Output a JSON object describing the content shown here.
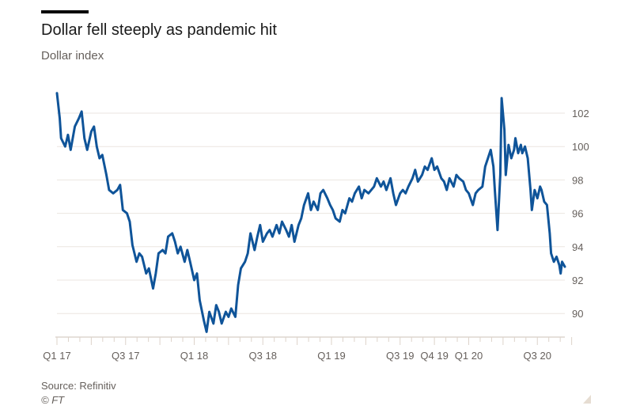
{
  "header": {
    "title": "Dollar fell steeply as pandemic hit",
    "subtitle": "Dollar index"
  },
  "footer": {
    "source": "Source: Refinitiv",
    "copyright": "© FT"
  },
  "chart_data": {
    "type": "line",
    "title": "Dollar fell steeply as pandemic hit",
    "subtitle": "Dollar index",
    "xlabel": "",
    "ylabel": "Dollar index",
    "ylim": [
      88.6,
      103.5
    ],
    "xlim": [
      2017.0,
      2020.75
    ],
    "grid": true,
    "y_axis_side": "right",
    "line_color": "#0f5499",
    "y_ticks": [
      90,
      92,
      94,
      96,
      98,
      100,
      102
    ],
    "x_ticks": [
      {
        "label": "Q1 17",
        "x": 2017.0
      },
      {
        "label": "Q3 17",
        "x": 2017.5
      },
      {
        "label": "Q1 18",
        "x": 2018.0
      },
      {
        "label": "Q3 18",
        "x": 2018.5
      },
      {
        "label": "Q1 19",
        "x": 2019.0
      },
      {
        "label": "Q3 19",
        "x": 2019.5
      },
      {
        "label": "Q4 19",
        "x": 2019.75
      },
      {
        "label": "Q1 20",
        "x": 2020.0
      },
      {
        "label": "Q3 20",
        "x": 2020.5
      }
    ],
    "series": [
      {
        "name": "Dollar index",
        "x": [
          2017.0,
          2017.02,
          2017.03,
          2017.06,
          2017.08,
          2017.1,
          2017.13,
          2017.16,
          2017.18,
          2017.2,
          2017.22,
          2017.25,
          2017.27,
          2017.29,
          2017.31,
          2017.33,
          2017.36,
          2017.38,
          2017.41,
          2017.44,
          2017.46,
          2017.48,
          2017.51,
          2017.53,
          2017.55,
          2017.58,
          2017.6,
          2017.62,
          2017.65,
          2017.67,
          2017.7,
          2017.72,
          2017.74,
          2017.77,
          2017.79,
          2017.81,
          2017.84,
          2017.86,
          2017.88,
          2017.9,
          2017.93,
          2017.95,
          2017.97,
          2018.0,
          2018.02,
          2018.04,
          2018.07,
          2018.09,
          2018.11,
          2018.14,
          2018.16,
          2018.18,
          2018.2,
          2018.23,
          2018.25,
          2018.27,
          2018.3,
          2018.32,
          2018.34,
          2018.37,
          2018.39,
          2018.41,
          2018.44,
          2018.46,
          2018.48,
          2018.5,
          2018.53,
          2018.55,
          2018.57,
          2018.6,
          2018.62,
          2018.64,
          2018.67,
          2018.69,
          2018.71,
          2018.73,
          2018.76,
          2018.78,
          2018.8,
          2018.83,
          2018.85,
          2018.87,
          2018.9,
          2018.92,
          2018.94,
          2018.97,
          2018.99,
          2019.01,
          2019.03,
          2019.06,
          2019.08,
          2019.1,
          2019.13,
          2019.15,
          2019.17,
          2019.2,
          2019.22,
          2019.24,
          2019.27,
          2019.29,
          2019.31,
          2019.33,
          2019.36,
          2019.38,
          2019.4,
          2019.43,
          2019.45,
          2019.47,
          2019.5,
          2019.52,
          2019.54,
          2019.56,
          2019.59,
          2019.61,
          2019.63,
          2019.66,
          2019.68,
          2019.7,
          2019.73,
          2019.75,
          2019.77,
          2019.8,
          2019.82,
          2019.84,
          2019.86,
          2019.89,
          2019.91,
          2019.93,
          2019.96,
          2019.98,
          2020.0,
          2020.03,
          2020.05,
          2020.07,
          2020.1,
          2020.12,
          2020.14,
          2020.16,
          2020.18,
          2020.19,
          2020.21,
          2020.23,
          2020.24,
          2020.26,
          2020.27,
          2020.29,
          2020.31,
          2020.33,
          2020.34,
          2020.36,
          2020.38,
          2020.39,
          2020.41,
          2020.43,
          2020.45,
          2020.46,
          2020.48,
          2020.5,
          2020.52,
          2020.53,
          2020.55,
          2020.57,
          2020.59,
          2020.6,
          2020.62,
          2020.64,
          2020.66,
          2020.67,
          2020.68,
          2020.7
        ],
        "values": [
          103.2,
          101.7,
          100.5,
          100.0,
          100.7,
          99.8,
          101.2,
          101.7,
          102.1,
          100.5,
          99.8,
          100.9,
          101.2,
          100.0,
          99.3,
          99.5,
          98.3,
          97.4,
          97.2,
          97.4,
          97.7,
          96.2,
          96.0,
          95.5,
          94.1,
          93.1,
          93.6,
          93.4,
          92.4,
          92.7,
          91.5,
          92.4,
          93.6,
          93.8,
          93.6,
          94.6,
          94.8,
          94.3,
          93.6,
          94.0,
          93.1,
          93.8,
          93.1,
          92.0,
          92.4,
          90.8,
          89.6,
          88.9,
          90.1,
          89.4,
          90.5,
          90.1,
          89.4,
          90.1,
          89.8,
          90.3,
          89.8,
          91.7,
          92.7,
          93.1,
          93.6,
          94.8,
          93.8,
          94.6,
          95.3,
          94.3,
          94.8,
          95.0,
          94.6,
          95.3,
          94.8,
          95.5,
          95.0,
          94.6,
          95.3,
          94.3,
          95.3,
          95.7,
          96.5,
          97.2,
          96.2,
          96.7,
          96.2,
          97.2,
          97.4,
          96.9,
          96.5,
          96.2,
          95.7,
          95.5,
          96.2,
          96.0,
          96.9,
          96.7,
          97.2,
          97.6,
          96.9,
          97.4,
          97.2,
          97.4,
          97.6,
          98.1,
          97.6,
          97.9,
          97.4,
          98.1,
          97.2,
          96.5,
          97.2,
          97.4,
          97.2,
          97.6,
          98.1,
          98.6,
          97.9,
          98.3,
          98.8,
          98.6,
          99.3,
          98.6,
          98.8,
          98.1,
          97.9,
          97.4,
          98.1,
          97.6,
          98.3,
          98.1,
          97.9,
          97.4,
          97.2,
          96.5,
          97.2,
          97.4,
          97.6,
          98.8,
          99.3,
          99.8,
          98.8,
          97.4,
          95.0,
          98.3,
          102.9,
          101.0,
          98.3,
          100.1,
          99.3,
          99.8,
          100.5,
          99.6,
          100.1,
          99.6,
          100.0,
          99.3,
          97.4,
          96.2,
          97.4,
          96.9,
          97.6,
          97.4,
          96.7,
          96.5,
          94.8,
          93.6,
          93.1,
          93.4,
          92.9,
          92.4,
          93.1,
          92.8
        ]
      }
    ]
  }
}
